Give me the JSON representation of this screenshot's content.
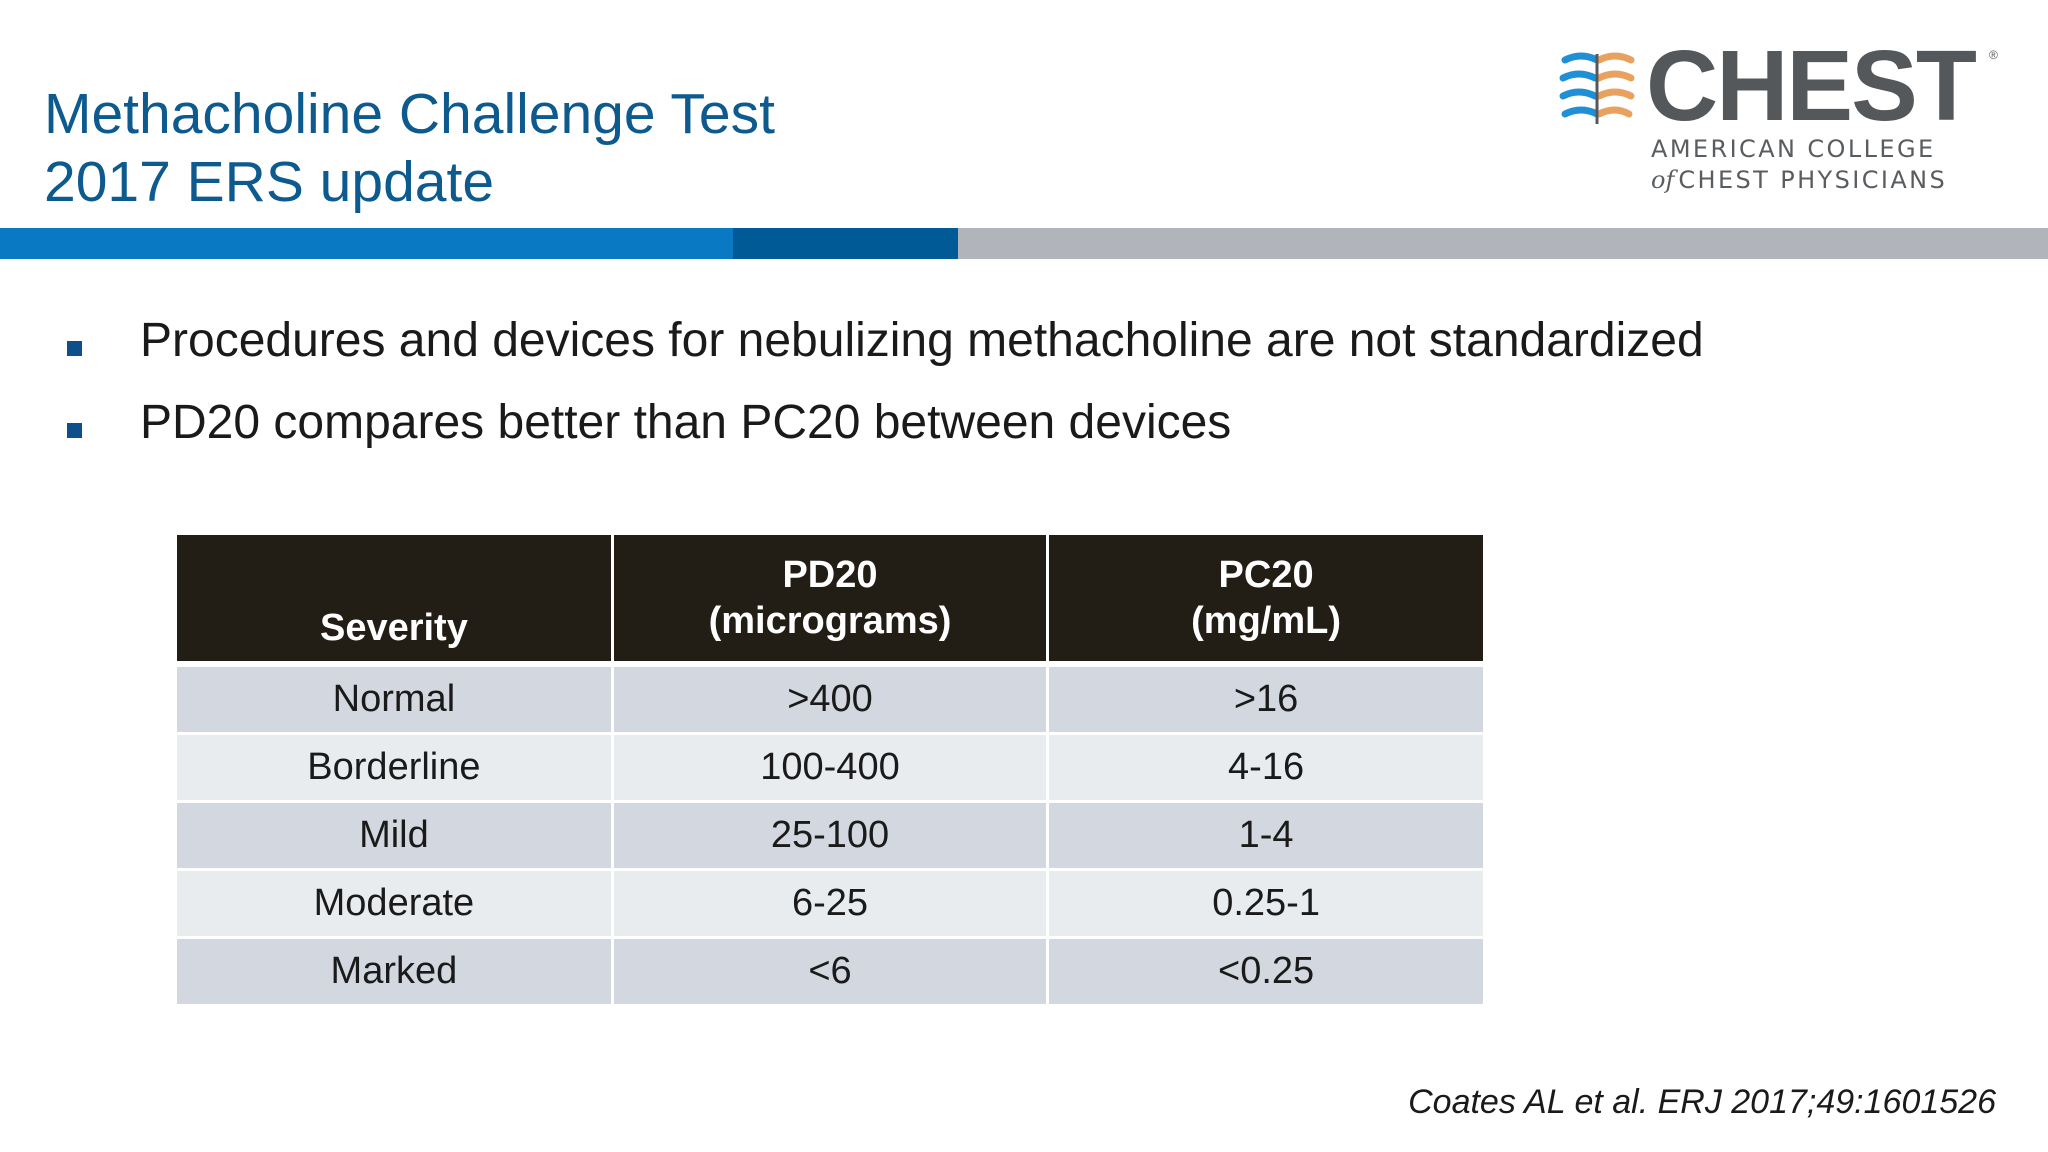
{
  "title": {
    "line1": "Methacholine Challenge Test",
    "line2": "2017 ERS update"
  },
  "logo": {
    "wordmark": "CHEST",
    "registered": "®",
    "subtitle_line1": "AMERICAN COLLEGE",
    "subtitle_of": "of",
    "subtitle_line2": "CHEST PHYSICIANS",
    "colors": {
      "blue": "#1f8fd6",
      "orange": "#e8a15e",
      "gray": "#55585b"
    }
  },
  "band_colors": [
    "#0a79c4",
    "#005a96",
    "#b1b5bb"
  ],
  "bullets": [
    "Procedures and devices for nebulizing methacholine are not standardized",
    "PD20 compares better than PC20 between devices"
  ],
  "table": {
    "headers": {
      "severity": "Severity",
      "pd20_line1": "PD20",
      "pd20_line2": "(micrograms)",
      "pc20_line1": "PC20",
      "pc20_line2": "(mg/mL)"
    },
    "rows": [
      {
        "severity": "Normal",
        "pd20": ">400",
        "pc20": ">16"
      },
      {
        "severity": "Borderline",
        "pd20": "100-400",
        "pc20": "4-16"
      },
      {
        "severity": "Mild",
        "pd20": "25-100",
        "pc20": "1-4"
      },
      {
        "severity": "Moderate",
        "pd20": "6-25",
        "pc20": "0.25-1"
      },
      {
        "severity": "Marked",
        "pd20": "<6",
        "pc20": "<0.25"
      }
    ]
  },
  "citation": "Coates AL et al. ERJ 2017;49:1601526"
}
